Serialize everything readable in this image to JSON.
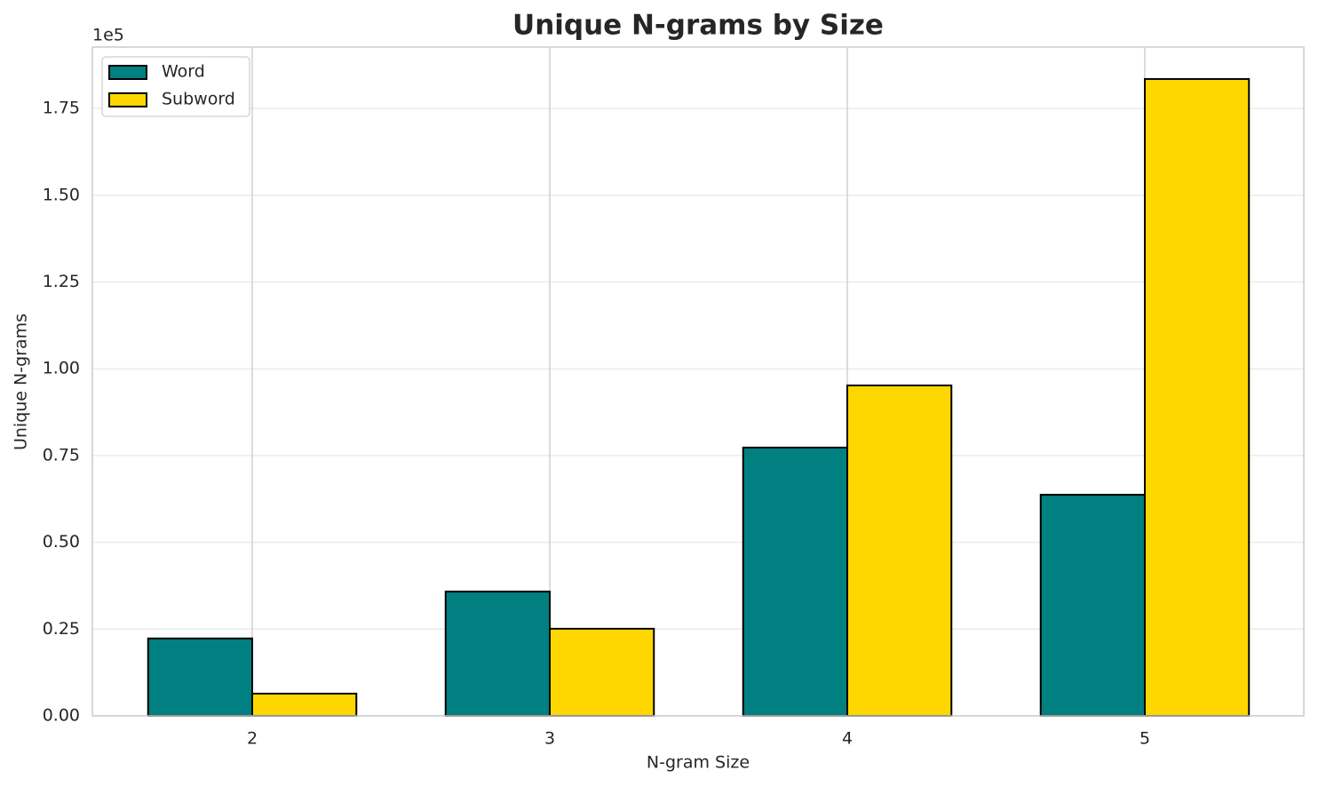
{
  "chart_data": {
    "type": "bar",
    "title": "Unique N-grams by Size",
    "x_label": "N-gram Size",
    "y_label": "Unique N-grams",
    "y_offset_label": "1e5",
    "categories": [
      "2",
      "3",
      "4",
      "5"
    ],
    "series": [
      {
        "name": "Word",
        "color": "#008080",
        "values": [
          22300,
          35800,
          77300,
          63700
        ]
      },
      {
        "name": "Subword",
        "color": "#ffd700",
        "values": [
          6400,
          25100,
          95200,
          183500
        ]
      }
    ],
    "ylim": [
      0,
      192700
    ],
    "yticks": [
      {
        "value": 0,
        "label": "0.00"
      },
      {
        "value": 25000,
        "label": "0.25"
      },
      {
        "value": 50000,
        "label": "0.50"
      },
      {
        "value": 75000,
        "label": "0.75"
      },
      {
        "value": 100000,
        "label": "1.00"
      },
      {
        "value": 125000,
        "label": "1.25"
      },
      {
        "value": 150000,
        "label": "1.50"
      },
      {
        "value": 175000,
        "label": "1.75"
      }
    ],
    "grid": true,
    "legend": "upper left"
  }
}
